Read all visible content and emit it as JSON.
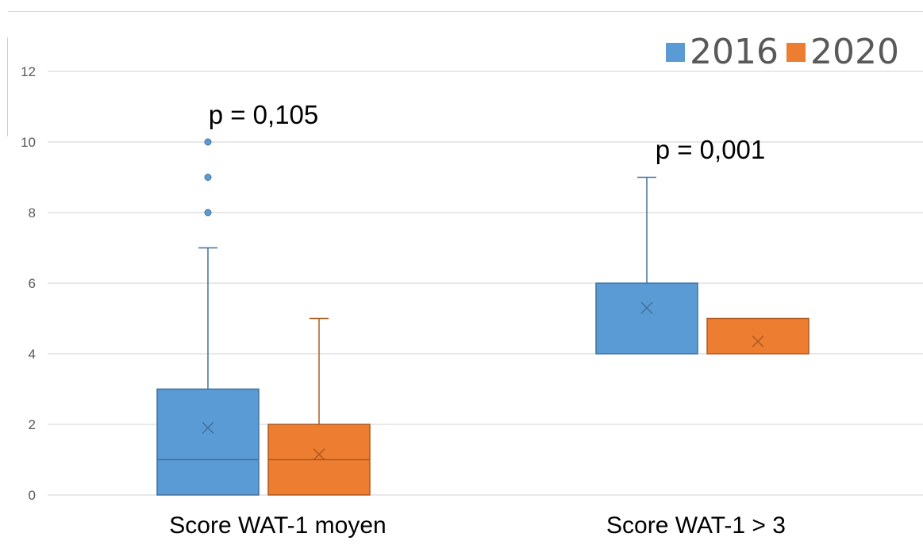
{
  "chart_data": {
    "type": "box",
    "title": "",
    "xlabel": "",
    "ylabel": "",
    "ylim": [
      0,
      12
    ],
    "yticks": [
      0,
      2,
      4,
      6,
      8,
      10,
      12
    ],
    "grid": true,
    "legend_position": "top-right",
    "categories": [
      "Score WAT-1 moyen",
      "Score WAT-1 > 3"
    ],
    "annotations": [
      "p = 0,105",
      "p = 0,001"
    ],
    "series": [
      {
        "name": "2016",
        "color": "#5b9bd5",
        "boxes": [
          {
            "min": 0,
            "q1": 0,
            "median": 1,
            "q3": 3,
            "max": 7,
            "mean": 1.9,
            "outliers": [
              8,
              9,
              10
            ]
          },
          {
            "min": 4,
            "q1": 4,
            "median": 4,
            "q3": 6,
            "max": 9,
            "mean": 5.3,
            "outliers": []
          }
        ]
      },
      {
        "name": "2020",
        "color": "#ed7d31",
        "boxes": [
          {
            "min": 0,
            "q1": 0,
            "median": 1,
            "q3": 2,
            "max": 5,
            "mean": 1.15,
            "outliers": []
          },
          {
            "min": 4,
            "q1": 4,
            "median": 4,
            "q3": 5,
            "max": 5,
            "mean": 4.35,
            "outliers": []
          }
        ]
      }
    ]
  }
}
